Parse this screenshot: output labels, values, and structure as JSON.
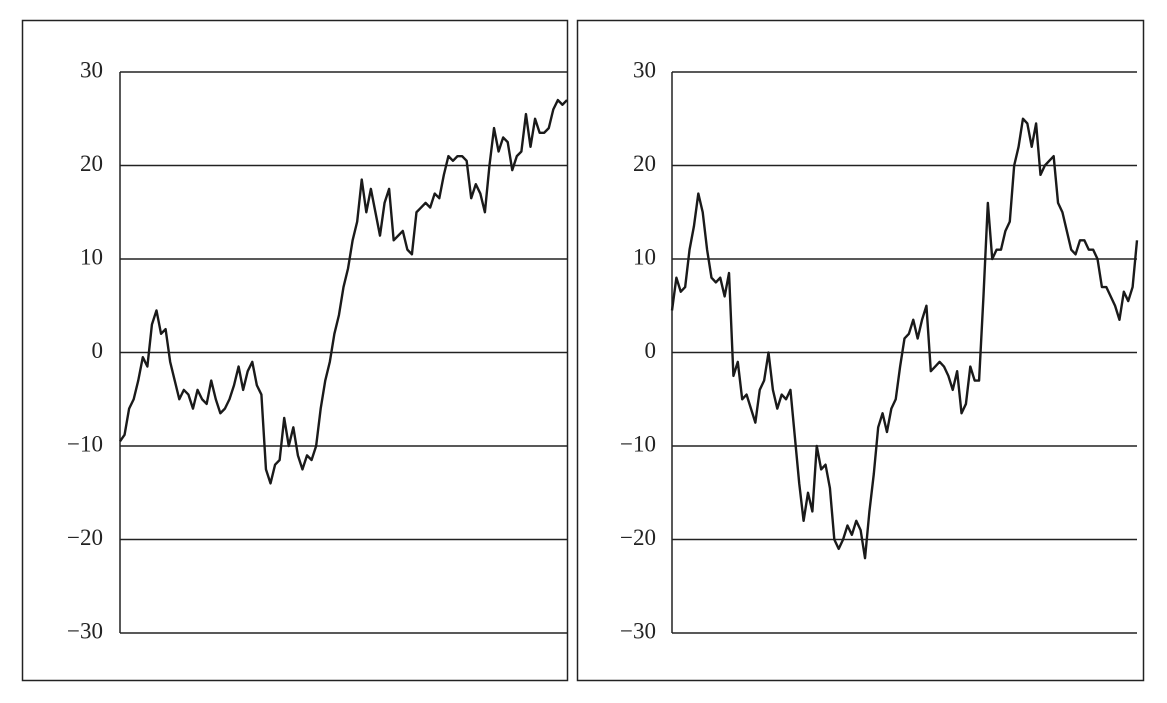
{
  "chart_data": [
    {
      "type": "line",
      "color": "#1a1a1a",
      "grid": true,
      "ylim": [
        -30,
        30
      ],
      "yticks": [
        {
          "value": -30,
          "label": "−30"
        },
        {
          "value": -20,
          "label": "−20"
        },
        {
          "value": -10,
          "label": "−10"
        },
        0,
        10,
        20,
        30
      ],
      "values": [
        -9.5,
        -8.8,
        -6,
        -5,
        -3,
        -0.5,
        -1.5,
        3,
        4.5,
        2,
        2.5,
        -1,
        -3,
        -5,
        -4,
        -4.5,
        -6,
        -4,
        -5,
        -5.5,
        -3,
        -5,
        -6.5,
        -6,
        -5,
        -3.5,
        -1.5,
        -4,
        -2,
        -1,
        -3.5,
        -4.5,
        -12.5,
        -14,
        -12,
        -11.5,
        -7,
        -10,
        -8,
        -11,
        -12.5,
        -11,
        -11.5,
        -10,
        -6,
        -3,
        -1,
        2,
        4,
        7,
        9,
        12,
        14,
        18.5,
        15,
        17.5,
        15,
        12.5,
        16,
        17.5,
        12,
        12.5,
        13,
        11,
        10.5,
        15,
        15.5,
        16,
        15.5,
        17,
        16.5,
        19,
        21,
        20.5,
        21,
        21,
        20.5,
        16.5,
        18,
        17,
        15,
        20,
        24,
        21.5,
        23,
        22.5,
        19.5,
        21,
        21.5,
        25.5,
        22,
        25,
        23.5,
        23.5,
        24,
        26,
        27,
        26.5,
        27
      ]
    },
    {
      "type": "line",
      "color": "#1a1a1a",
      "grid": true,
      "ylim": [
        -30,
        30
      ],
      "yticks": [
        {
          "value": -30,
          "label": "−30"
        },
        {
          "value": -20,
          "label": "−20"
        },
        {
          "value": -10,
          "label": "−10"
        },
        0,
        10,
        20,
        30
      ],
      "values": [
        4.5,
        8,
        6.5,
        7,
        11,
        13.5,
        17,
        15,
        11,
        8,
        7.5,
        8,
        6,
        8.5,
        -2.5,
        -1,
        -5,
        -4.5,
        -6,
        -7.5,
        -4,
        -3,
        0,
        -4,
        -6,
        -4.5,
        -5,
        -4,
        -9,
        -14,
        -18,
        -15,
        -17,
        -10,
        -12.5,
        -12,
        -14.5,
        -20,
        -21,
        -20,
        -18.5,
        -19.5,
        -18,
        -19,
        -22,
        -17,
        -13,
        -8,
        -6.5,
        -8.5,
        -6,
        -5,
        -1.5,
        1.5,
        2,
        3.5,
        1.5,
        3.5,
        5,
        -2,
        -1.5,
        -1,
        -1.5,
        -2.5,
        -4,
        -2,
        -6.5,
        -5.5,
        -1.5,
        -3,
        -3,
        6,
        16,
        10,
        11,
        11,
        13,
        14,
        20,
        22,
        25,
        24.5,
        22,
        24.5,
        19,
        20,
        20.5,
        21,
        16,
        15,
        13,
        11,
        10.5,
        12,
        12,
        11,
        11,
        10,
        7,
        7,
        6,
        5,
        3.5,
        6.5,
        5.5,
        7,
        12
      ]
    }
  ]
}
